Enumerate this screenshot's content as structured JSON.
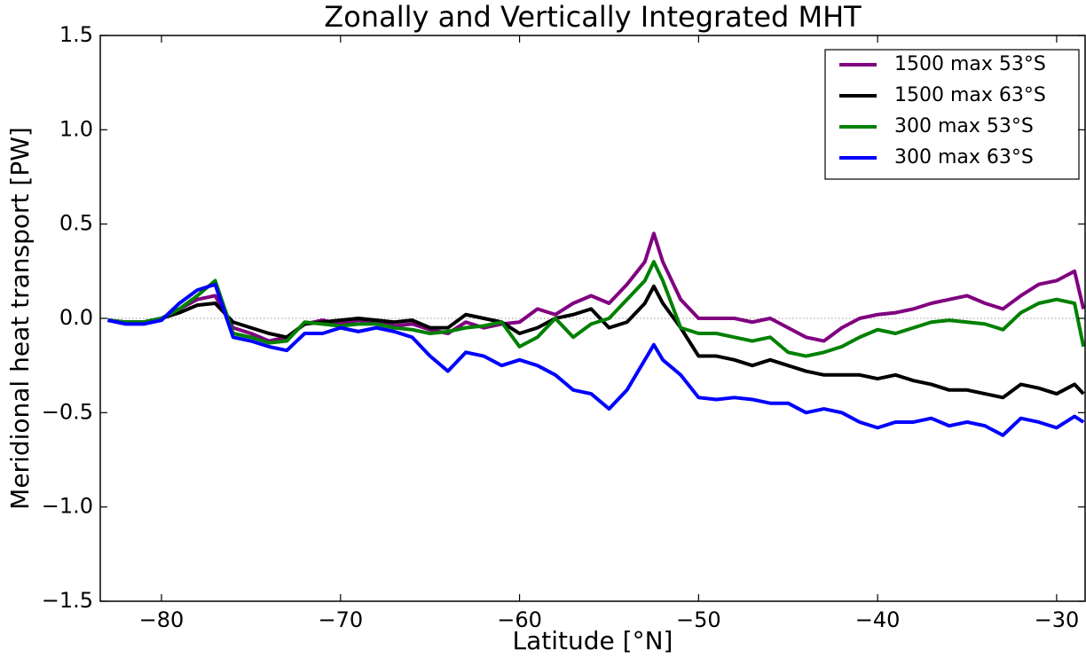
{
  "chart_data": {
    "type": "line",
    "title": "Zonally and Vertically Integrated MHT",
    "x_label": "Latitude [°N]",
    "y_label": "Meridional heat transport [PW]",
    "xlim": [
      -83.42,
      -28.41
    ],
    "ylim": [
      -1.5,
      1.5
    ],
    "xticks": [
      {
        "value": -80,
        "label": "−80"
      },
      {
        "value": -70,
        "label": "−70"
      },
      {
        "value": -60,
        "label": "−60"
      },
      {
        "value": -50,
        "label": "−50"
      },
      {
        "value": -40,
        "label": "−40"
      },
      {
        "value": -30,
        "label": "−30"
      }
    ],
    "yticks": [
      {
        "value": -1.5,
        "label": "−1.5"
      },
      {
        "value": -1.0,
        "label": "−1.0"
      },
      {
        "value": -0.5,
        "label": "−0.5"
      },
      {
        "value": 0,
        "label": "0.0"
      },
      0.5,
      {
        "value": 1.0,
        "label": "1.0"
      },
      1.5
    ],
    "reference_line": 0,
    "legend": "upper right",
    "x": [
      -83,
      -82,
      -81,
      -80,
      -79,
      -78,
      -77,
      -76,
      -75,
      -74,
      -73,
      -72,
      -71,
      -70,
      -69,
      -68,
      -67,
      -66,
      -65,
      -64,
      -63,
      -62,
      -61,
      -60,
      -59,
      -58,
      -57,
      -56,
      -55,
      -54,
      -53,
      -52.5,
      -52,
      -51,
      -50,
      -49,
      -48,
      -47,
      -46,
      -45,
      -44,
      -43,
      -42,
      -41,
      -40,
      -39,
      -38,
      -37,
      -36,
      -35,
      -34,
      -33,
      -32,
      -31,
      -30,
      -29,
      -28.5
    ],
    "series": [
      {
        "name": "1500 max 53°S",
        "color": "#800080",
        "values": [
          -0.01,
          -0.02,
          -0.02,
          0.0,
          0.05,
          0.1,
          0.12,
          -0.05,
          -0.08,
          -0.12,
          -0.1,
          -0.03,
          -0.01,
          -0.03,
          -0.01,
          -0.02,
          -0.04,
          -0.03,
          -0.06,
          -0.08,
          -0.02,
          -0.05,
          -0.03,
          -0.02,
          0.05,
          0.02,
          0.08,
          0.12,
          0.08,
          0.18,
          0.3,
          0.45,
          0.3,
          0.1,
          0.0,
          0.0,
          0.0,
          -0.02,
          0.0,
          -0.05,
          -0.1,
          -0.12,
          -0.05,
          0.0,
          0.02,
          0.03,
          0.05,
          0.08,
          0.1,
          0.12,
          0.08,
          0.05,
          0.12,
          0.18,
          0.2,
          0.25,
          0.05
        ]
      },
      {
        "name": "1500 max 63°S",
        "color": "#000000",
        "values": [
          -0.01,
          -0.02,
          -0.02,
          0.0,
          0.03,
          0.07,
          0.08,
          -0.02,
          -0.05,
          -0.08,
          -0.1,
          -0.03,
          -0.02,
          -0.01,
          0.0,
          -0.01,
          -0.02,
          -0.01,
          -0.05,
          -0.05,
          0.02,
          0.0,
          -0.02,
          -0.08,
          -0.05,
          0.0,
          0.02,
          0.05,
          -0.05,
          -0.02,
          0.08,
          0.17,
          0.08,
          -0.05,
          -0.2,
          -0.2,
          -0.22,
          -0.25,
          -0.22,
          -0.25,
          -0.28,
          -0.3,
          -0.3,
          -0.3,
          -0.32,
          -0.3,
          -0.33,
          -0.35,
          -0.38,
          -0.38,
          -0.4,
          -0.42,
          -0.35,
          -0.37,
          -0.4,
          -0.35,
          -0.4
        ]
      },
      {
        "name": "300 max 53°S",
        "color": "#008000",
        "values": [
          -0.01,
          -0.02,
          -0.02,
          0.0,
          0.05,
          0.12,
          0.2,
          -0.08,
          -0.1,
          -0.13,
          -0.12,
          -0.02,
          -0.03,
          -0.04,
          -0.03,
          -0.03,
          -0.05,
          -0.06,
          -0.08,
          -0.07,
          -0.05,
          -0.04,
          -0.02,
          -0.15,
          -0.1,
          0.0,
          -0.1,
          -0.03,
          0.0,
          0.1,
          0.2,
          0.3,
          0.2,
          -0.05,
          -0.08,
          -0.08,
          -0.1,
          -0.12,
          -0.1,
          -0.18,
          -0.2,
          -0.18,
          -0.15,
          -0.1,
          -0.06,
          -0.08,
          -0.05,
          -0.02,
          -0.01,
          -0.02,
          -0.03,
          -0.06,
          0.03,
          0.08,
          0.1,
          0.08,
          -0.15
        ]
      },
      {
        "name": "300 max 63°S",
        "color": "#0000ff",
        "values": [
          -0.01,
          -0.03,
          -0.03,
          -0.01,
          0.08,
          0.15,
          0.18,
          -0.1,
          -0.12,
          -0.15,
          -0.17,
          -0.08,
          -0.08,
          -0.05,
          -0.07,
          -0.05,
          -0.07,
          -0.1,
          -0.2,
          -0.28,
          -0.18,
          -0.2,
          -0.25,
          -0.22,
          -0.25,
          -0.3,
          -0.38,
          -0.4,
          -0.48,
          -0.38,
          -0.22,
          -0.14,
          -0.22,
          -0.3,
          -0.42,
          -0.43,
          -0.42,
          -0.43,
          -0.45,
          -0.45,
          -0.5,
          -0.48,
          -0.5,
          -0.55,
          -0.58,
          -0.55,
          -0.55,
          -0.53,
          -0.57,
          -0.55,
          -0.57,
          -0.62,
          -0.53,
          -0.55,
          -0.58,
          -0.52,
          -0.55
        ]
      }
    ]
  }
}
